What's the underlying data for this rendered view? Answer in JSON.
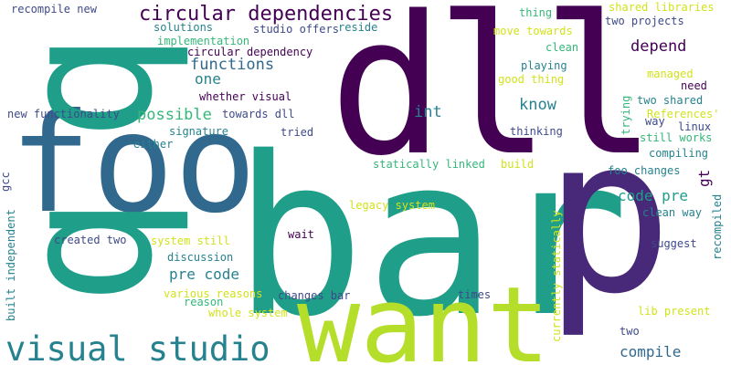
{
  "palette": {
    "dark_purple": "#440154",
    "indigo": "#482878",
    "slate_blue": "#3e4a89",
    "blue": "#31688e",
    "teal_blue": "#26828e",
    "teal": "#1f9e89",
    "green": "#35b779",
    "yellow_green": "#b5de2b",
    "yellow": "#d2e21b"
  },
  "words": [
    {
      "text": "bar",
      "color": "#1f9e89"
    },
    {
      "text": "dll",
      "color": "#440154"
    },
    {
      "text": "foo",
      "color": "#31688e"
    },
    {
      "text": "want",
      "color": "#b5de2b"
    },
    {
      "text": "p",
      "color": "#482878"
    },
    {
      "text": "q",
      "color": "#1f9e89"
    },
    {
      "text": "q",
      "color": "#1f9e89"
    },
    {
      "text": "visual studio",
      "color": "#26828e"
    },
    {
      "text": "circular dependencies",
      "color": "#440154"
    },
    {
      "text": "functions",
      "color": "#31688e"
    },
    {
      "text": "one",
      "color": "#26828e"
    },
    {
      "text": "possible",
      "color": "#35b779"
    },
    {
      "text": "int",
      "color": "#26828e"
    },
    {
      "text": "know",
      "color": "#26828e"
    },
    {
      "text": "depend",
      "color": "#440154"
    },
    {
      "text": "code pre",
      "color": "#1f9e89"
    },
    {
      "text": "pre code",
      "color": "#26828e"
    },
    {
      "text": "compile",
      "color": "#31688e"
    },
    {
      "text": "gt",
      "color": "#440154"
    },
    {
      "text": "recompile new",
      "color": "#3e4a89"
    },
    {
      "text": "solutions",
      "color": "#26828e"
    },
    {
      "text": "implementation",
      "color": "#35b779"
    },
    {
      "text": "studio offers",
      "color": "#3e4a89"
    },
    {
      "text": "reside",
      "color": "#26828e"
    },
    {
      "text": "circular dependency",
      "color": "#440154"
    },
    {
      "text": "whether visual",
      "color": "#440154"
    },
    {
      "text": "new functionality",
      "color": "#3e4a89"
    },
    {
      "text": "towards dll",
      "color": "#3e4a89"
    },
    {
      "text": "signature",
      "color": "#26828e"
    },
    {
      "text": "either",
      "color": "#26828e"
    },
    {
      "text": "tried",
      "color": "#3e4a89"
    },
    {
      "text": "thinking",
      "color": "#3e4a89"
    },
    {
      "text": "statically linked",
      "color": "#35b779"
    },
    {
      "text": "build",
      "color": "#d2e21b"
    },
    {
      "text": "foo changes",
      "color": "#26828e"
    },
    {
      "text": "gcc",
      "color": "#3e4a89"
    },
    {
      "text": "legacy system",
      "color": "#d2e21b"
    },
    {
      "text": "wait",
      "color": "#440154"
    },
    {
      "text": "created two",
      "color": "#3e4a89"
    },
    {
      "text": "system still",
      "color": "#d2e21b"
    },
    {
      "text": "built independent",
      "color": "#26828e"
    },
    {
      "text": "discussion",
      "color": "#26828e"
    },
    {
      "text": "various reasons",
      "color": "#d2e21b"
    },
    {
      "text": "reason",
      "color": "#35b779"
    },
    {
      "text": "changes bar",
      "color": "#3e4a89"
    },
    {
      "text": "whole system",
      "color": "#d2e21b"
    },
    {
      "text": "times",
      "color": "#3e4a89"
    },
    {
      "text": "currently statically",
      "color": "#d2e21b"
    },
    {
      "text": "two",
      "color": "#3e4a89"
    },
    {
      "text": "lib present",
      "color": "#d2e21b"
    },
    {
      "text": "thing",
      "color": "#35b779"
    },
    {
      "text": "move towards",
      "color": "#d2e21b"
    },
    {
      "text": "clean",
      "color": "#35b779"
    },
    {
      "text": "playing",
      "color": "#26828e"
    },
    {
      "text": "good thing",
      "color": "#d2e21b"
    },
    {
      "text": "shared libraries",
      "color": "#d2e21b"
    },
    {
      "text": "two projects",
      "color": "#3e4a89"
    },
    {
      "text": "managed",
      "color": "#d2e21b"
    },
    {
      "text": "need",
      "color": "#440154"
    },
    {
      "text": "two shared",
      "color": "#26828e"
    },
    {
      "text": "trying",
      "color": "#35b779"
    },
    {
      "text": "References'",
      "color": "#d2e21b"
    },
    {
      "text": "way",
      "color": "#3e4a89"
    },
    {
      "text": "linux",
      "color": "#3e4a89"
    },
    {
      "text": "still works",
      "color": "#35b779"
    },
    {
      "text": "compiling",
      "color": "#26828e"
    },
    {
      "text": "clean way",
      "color": "#26828e"
    },
    {
      "text": "recompiled",
      "color": "#26828e"
    },
    {
      "text": "suggest",
      "color": "#3e4a89"
    }
  ]
}
